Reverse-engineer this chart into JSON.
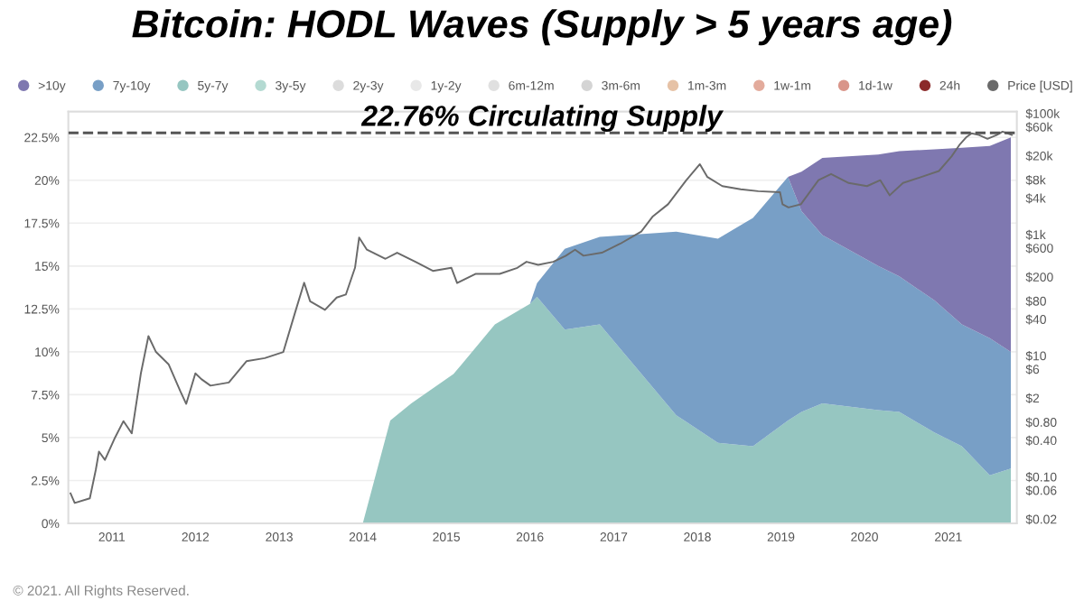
{
  "chart_data": {
    "type": "area",
    "title": "Bitcoin: HODL Waves (Supply > 5 years age)",
    "stacked": true,
    "legend": "top",
    "grid": "y",
    "x": [
      "2014-01-01",
      "2014-05-01",
      "2014-08-01",
      "2015-02-01",
      "2015-08-01",
      "2016-01-01",
      "2016-02-01",
      "2016-06-01",
      "2016-11-01",
      "2017-10-01",
      "2018-04-01",
      "2018-09-01",
      "2019-02-01",
      "2019-04-01",
      "2019-07-01",
      "2020-03-01",
      "2020-06-01",
      "2020-11-01",
      "2021-03-01",
      "2021-07-01",
      "2021-10-01"
    ],
    "series": [
      {
        "name": "24h",
        "color": "#8b2a2a",
        "values": [
          null,
          null,
          null,
          null,
          null,
          null,
          null,
          null,
          null,
          null,
          null,
          null,
          null,
          null,
          null,
          null,
          null,
          null,
          null,
          null,
          null
        ]
      },
      {
        "name": "1d-1w",
        "color": "#d9958a",
        "values": [
          null,
          null,
          null,
          null,
          null,
          null,
          null,
          null,
          null,
          null,
          null,
          null,
          null,
          null,
          null,
          null,
          null,
          null,
          null,
          null,
          null
        ]
      },
      {
        "name": "1w-1m",
        "color": "#e3ab9c",
        "values": [
          null,
          null,
          null,
          null,
          null,
          null,
          null,
          null,
          null,
          null,
          null,
          null,
          null,
          null,
          null,
          null,
          null,
          null,
          null,
          null,
          null
        ]
      },
      {
        "name": "1m-3m",
        "color": "#e6c2a6",
        "values": [
          null,
          null,
          null,
          null,
          null,
          null,
          null,
          null,
          null,
          null,
          null,
          null,
          null,
          null,
          null,
          null,
          null,
          null,
          null,
          null,
          null
        ]
      },
      {
        "name": "3m-6m",
        "color": "#d4d4d4",
        "values": [
          null,
          null,
          null,
          null,
          null,
          null,
          null,
          null,
          null,
          null,
          null,
          null,
          null,
          null,
          null,
          null,
          null,
          null,
          null,
          null,
          null
        ]
      },
      {
        "name": "6m-12m",
        "color": "#e0e0e0",
        "values": [
          null,
          null,
          null,
          null,
          null,
          null,
          null,
          null,
          null,
          null,
          null,
          null,
          null,
          null,
          null,
          null,
          null,
          null,
          null,
          null,
          null
        ]
      },
      {
        "name": "1y-2y",
        "color": "#e8e8e8",
        "values": [
          null,
          null,
          null,
          null,
          null,
          null,
          null,
          null,
          null,
          null,
          null,
          null,
          null,
          null,
          null,
          null,
          null,
          null,
          null,
          null,
          null
        ]
      },
      {
        "name": "2y-3y",
        "color": "#dcdcdc",
        "values": [
          null,
          null,
          null,
          null,
          null,
          null,
          null,
          null,
          null,
          null,
          null,
          null,
          null,
          null,
          null,
          null,
          null,
          null,
          null,
          null,
          null
        ]
      },
      {
        "name": "3y-5y",
        "color": "#b4dad2",
        "values": [
          null,
          null,
          null,
          null,
          null,
          null,
          null,
          null,
          null,
          null,
          null,
          null,
          null,
          null,
          null,
          null,
          null,
          null,
          null,
          null,
          null
        ]
      },
      {
        "name": "5y-7y",
        "color": "#96c6c1",
        "values": [
          0,
          6.0,
          7.0,
          8.7,
          11.6,
          12.8,
          13.2,
          11.3,
          11.6,
          6.3,
          4.7,
          4.5,
          6.0,
          6.5,
          7.0,
          6.6,
          6.5,
          5.3,
          4.5,
          2.8,
          3.2
        ]
      },
      {
        "name": "7y-10y",
        "color": "#789fc6",
        "values": [
          0,
          0,
          0,
          0,
          0,
          0,
          0.8,
          4.7,
          5.1,
          10.7,
          11.9,
          13.3,
          14.2,
          11.7,
          9.8,
          8.4,
          7.9,
          7.7,
          7.1,
          8.0,
          6.8
        ]
      },
      {
        "name": ">10y",
        "color": "#7f78b0",
        "values": [
          0,
          0,
          0,
          0,
          0,
          0,
          0,
          0,
          0,
          0,
          0,
          0,
          0,
          2.3,
          4.5,
          6.5,
          7.3,
          8.8,
          10.3,
          11.2,
          12.5
        ]
      },
      {
        "name": "Price [USD]",
        "type": "line",
        "axis": "y2",
        "color": "#6a6a6a",
        "x": [
          "2010-07-05",
          "2010-07-23",
          "2010-09-27",
          "2010-10-23",
          "2010-11-06",
          "2010-12-02",
          "2011-01-12",
          "2011-02-21",
          "2011-03-29",
          "2011-05-08",
          "2011-06-10",
          "2011-07-13",
          "2011-09-06",
          "2011-10-27",
          "2011-11-22",
          "2012-01-01",
          "2012-01-27",
          "2012-03-07",
          "2012-05-26",
          "2012-08-11",
          "2012-10-30",
          "2013-01-19",
          "2013-03-11",
          "2013-04-20",
          "2013-05-16",
          "2013-07-20",
          "2013-09-09",
          "2013-10-19",
          "2013-11-28",
          "2013-12-16",
          "2014-01-19",
          "2014-04-10",
          "2014-05-31",
          "2014-08-19",
          "2014-11-03",
          "2015-01-23",
          "2015-02-17",
          "2015-05-08",
          "2015-08-22",
          "2015-11-07",
          "2015-12-17",
          "2016-02-06",
          "2016-04-12",
          "2016-06-06",
          "2016-07-16",
          "2016-08-22",
          "2016-11-10",
          "2017-01-30",
          "2017-05-01",
          "2017-06-21",
          "2017-08-26",
          "2017-11-14",
          "2018-01-12",
          "2018-02-14",
          "2018-04-20",
          "2018-07-09",
          "2018-09-24",
          "2018-12-28",
          "2019-01-08",
          "2019-02-03",
          "2019-03-29",
          "2019-06-14",
          "2019-08-08",
          "2019-10-24",
          "2020-01-12",
          "2020-03-10",
          "2020-04-20",
          "2020-06-17",
          "2020-09-05",
          "2020-11-21",
          "2021-01-15",
          "2021-02-21",
          "2021-03-22",
          "2021-04-13",
          "2021-05-15",
          "2021-06-21",
          "2021-07-31",
          "2021-08-26",
          "2021-10-05"
        ],
        "values": [
          0.053,
          0.037,
          0.044,
          0.13,
          0.26,
          0.19,
          0.42,
          0.83,
          0.52,
          5.1,
          21,
          11.5,
          7.2,
          2.6,
          1.6,
          5.1,
          4.1,
          3.2,
          3.6,
          8.1,
          9.1,
          11.5,
          51,
          160,
          79,
          57,
          91,
          102,
          282,
          890,
          562,
          398,
          501,
          355,
          251,
          282,
          158,
          224,
          224,
          282,
          355,
          316,
          355,
          447,
          562,
          447,
          501,
          708,
          1120,
          2000,
          3160,
          7900,
          14500,
          8900,
          6300,
          5600,
          5200,
          5000,
          3160,
          2800,
          3160,
          7900,
          10000,
          7100,
          6300,
          7900,
          4450,
          7100,
          8900,
          11200,
          19500,
          31000,
          41000,
          47000,
          44000,
          38000,
          44000,
          50000,
          44000
        ]
      }
    ],
    "xlim": [
      "2010-06-25",
      "2021-10-27"
    ],
    "xticks": [
      "2011",
      "2012",
      "2013",
      "2014",
      "2015",
      "2016",
      "2017",
      "2018",
      "2019",
      "2020",
      "2021"
    ],
    "ylim": [
      0,
      24
    ],
    "yticks": [
      {
        "value": 0,
        "label": "0%"
      },
      {
        "value": 2.5,
        "label": "2.5%"
      },
      {
        "value": 5,
        "label": "5%"
      },
      {
        "value": 7.5,
        "label": "7.5%"
      },
      {
        "value": 10,
        "label": "10%"
      },
      {
        "value": 12.5,
        "label": "12.5%"
      },
      {
        "value": 15,
        "label": "15%"
      },
      {
        "value": 17.5,
        "label": "17.5%"
      },
      {
        "value": 20,
        "label": "20%"
      },
      {
        "value": 22.5,
        "label": "22.5%"
      }
    ],
    "log": "y2",
    "y2lim": [
      0.017,
      107000
    ],
    "y2ticks": [
      {
        "value": 0.02,
        "label": "$0.02"
      },
      {
        "value": 0.06,
        "label": "$0.06"
      },
      {
        "value": 0.1,
        "label": "$0.10"
      },
      {
        "value": 0.4,
        "label": "$0.40"
      },
      {
        "value": 0.8,
        "label": "$0.80"
      },
      {
        "value": 2,
        "label": "$2"
      },
      {
        "value": 6,
        "label": "$6"
      },
      {
        "value": 10,
        "label": "$10"
      },
      {
        "value": 40,
        "label": "$40"
      },
      {
        "value": 80,
        "label": "$80"
      },
      {
        "value": 200,
        "label": "$200"
      },
      {
        "value": 600,
        "label": "$600"
      },
      {
        "value": 1000,
        "label": "$1k"
      },
      {
        "value": 4000,
        "label": "$4k"
      },
      {
        "value": 8000,
        "label": "$8k"
      },
      {
        "value": 20000,
        "label": "$20k"
      },
      {
        "value": 60000,
        "label": "$60k"
      },
      {
        "value": 100000,
        "label": "$100k"
      }
    ],
    "ref_lines": [
      {
        "axis": "y",
        "value": 22.76,
        "label": "22.76% Circulating Supply",
        "color": "#555555",
        "line_style": "dashed"
      }
    ],
    "annotations": [
      "© 2021. All Rights Reserved."
    ]
  }
}
